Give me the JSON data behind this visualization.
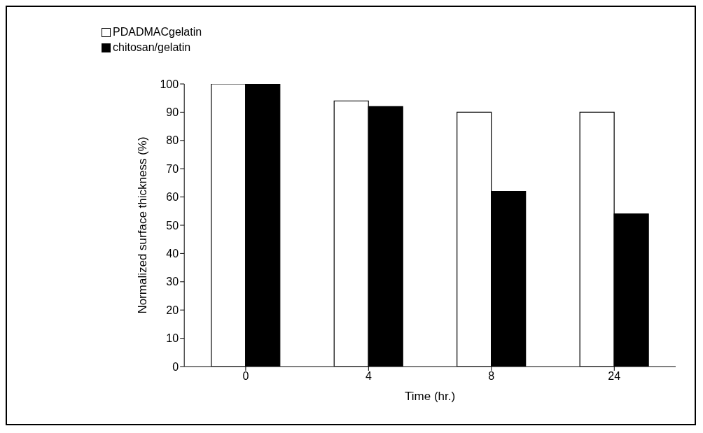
{
  "chart_data": {
    "type": "bar",
    "xlabel": "Time (hr.)",
    "ylabel": "Normalized surface thickness (%)",
    "categories": [
      "0",
      "4",
      "8",
      "24"
    ],
    "series": [
      {
        "name": "PDADMACgelatin",
        "color": "#ffffff",
        "values": [
          100,
          94,
          90,
          90
        ]
      },
      {
        "name": "chitosan/gelatin",
        "color": "#000000",
        "values": [
          100,
          92,
          62,
          54
        ]
      }
    ],
    "ylim": [
      0,
      100
    ],
    "yticks": [
      0,
      10,
      20,
      30,
      40,
      50,
      60,
      70,
      80,
      90,
      100
    ],
    "grid": false,
    "legend": "top left"
  }
}
